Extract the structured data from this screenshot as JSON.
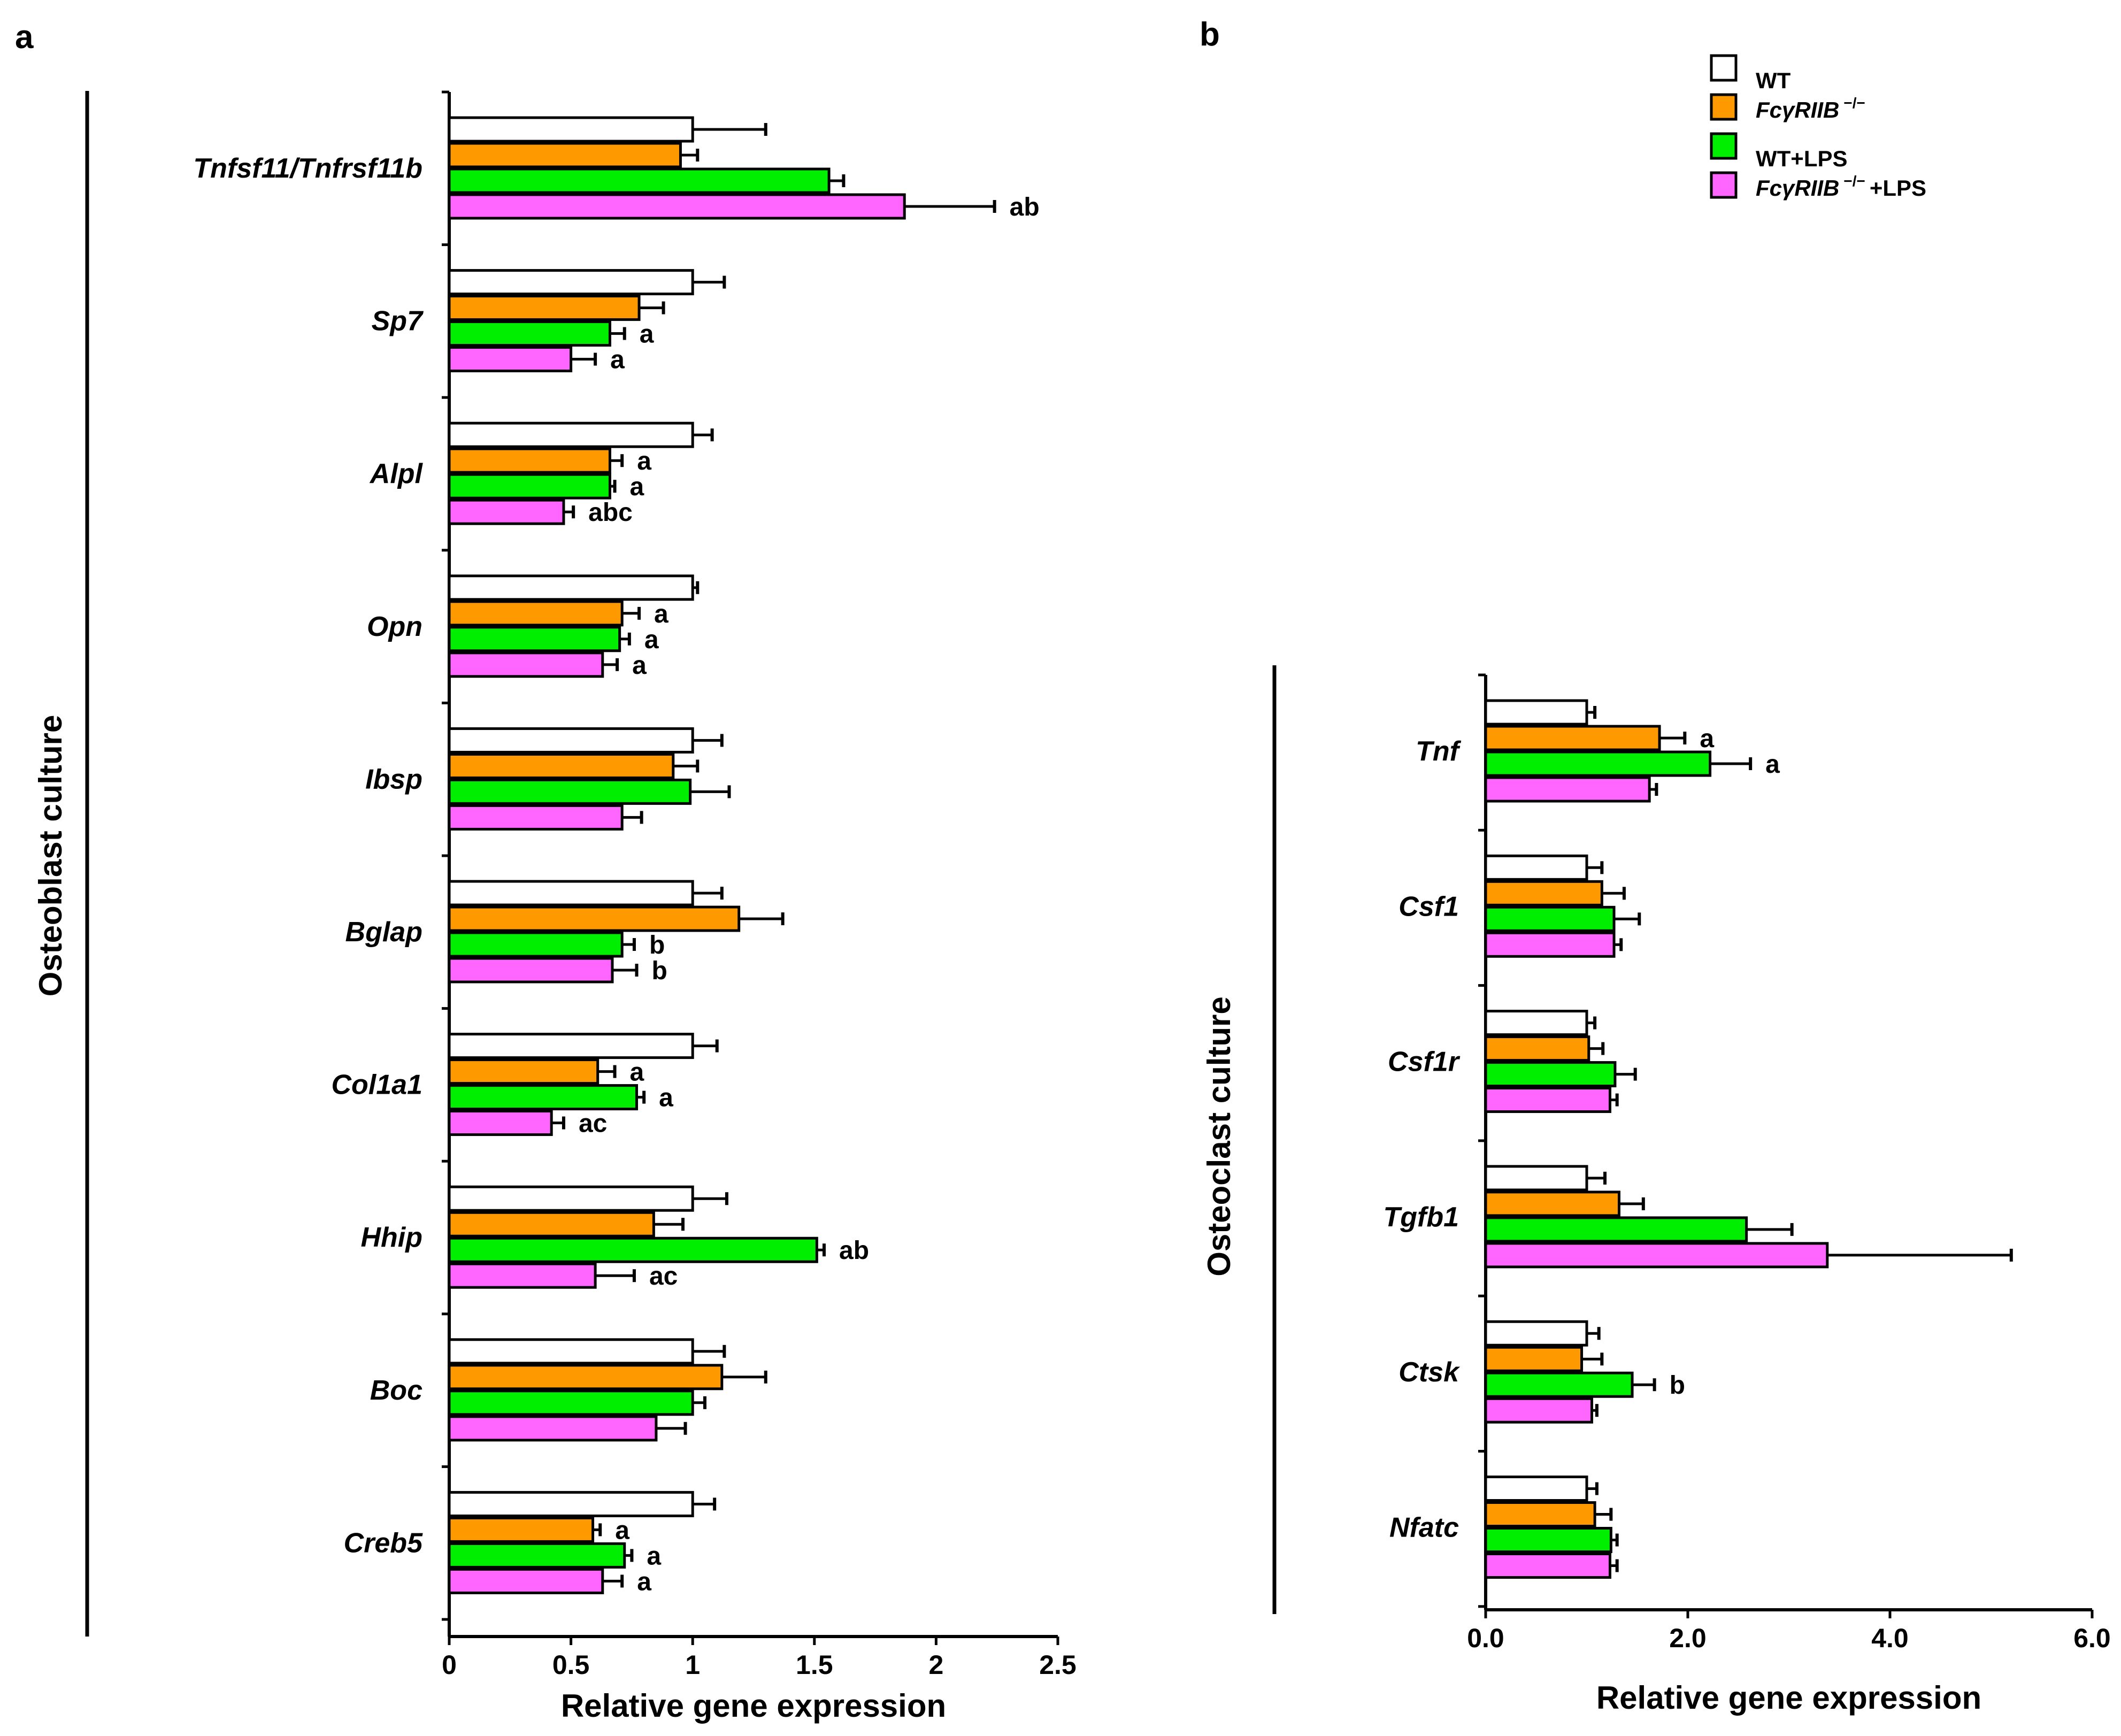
{
  "figure": {
    "panel_a_letter": "a",
    "panel_b_letter": "b"
  },
  "legend": {
    "items": [
      {
        "name": "WT",
        "color": "#ffffff",
        "italic": "",
        "sup": "",
        "suffix": "WT"
      },
      {
        "name": "FcγRIIB −/−",
        "color": "#ff9900",
        "italic": "FcγRIIB",
        "sup": "−/−",
        "suffix": ""
      },
      {
        "name": "WT+LPS",
        "color": "#00ee00",
        "italic": "",
        "sup": "",
        "suffix": "WT+LPS"
      },
      {
        "name": "FcγRIIB −/− +LPS",
        "color": "#ff66ff",
        "italic": "FcγRIIB",
        "sup": "−/−",
        "suffix": "+LPS"
      }
    ]
  },
  "chart_data": [
    {
      "panel": "a",
      "type": "bar",
      "orientation": "horizontal",
      "side_label": "Osteoblast culture",
      "xlabel": "Relative gene expression",
      "xlim": [
        0,
        2.5
      ],
      "xticks": [
        0,
        0.5,
        1,
        1.5,
        2,
        2.5
      ],
      "xtick_labels": [
        "0",
        "0.5",
        "1",
        "1.5",
        "2",
        "2.5"
      ],
      "categories": [
        "Tnfsf11/Tnfrsf11b",
        "Sp7",
        "Alpl",
        "Opn",
        "Ibsp",
        "Bglap",
        "Col1a1",
        "Hhip",
        "Boc",
        "Creb5"
      ],
      "series": [
        {
          "name": "WT",
          "color": "#ffffff",
          "values": [
            1.0,
            1.0,
            1.0,
            1.0,
            1.0,
            1.0,
            1.0,
            1.0,
            1.0,
            1.0
          ],
          "errors": [
            0.3,
            0.13,
            0.08,
            0.02,
            0.12,
            0.12,
            0.1,
            0.14,
            0.13,
            0.09
          ],
          "labels": [
            "",
            "",
            "",
            "",
            "",
            "",
            "",
            "",
            "",
            ""
          ]
        },
        {
          "name": "FcγRIIB −/−",
          "color": "#ff9900",
          "values": [
            0.95,
            0.78,
            0.66,
            0.71,
            0.92,
            1.19,
            0.61,
            0.84,
            1.12,
            0.59
          ],
          "errors": [
            0.07,
            0.1,
            0.05,
            0.07,
            0.1,
            0.18,
            0.07,
            0.12,
            0.18,
            0.03
          ],
          "labels": [
            "",
            "",
            "a",
            "a",
            "",
            "",
            "a",
            "",
            "",
            "a"
          ]
        },
        {
          "name": "WT+LPS",
          "color": "#00ee00",
          "values": [
            1.56,
            0.66,
            0.66,
            0.7,
            0.99,
            0.71,
            0.77,
            1.51,
            1.0,
            0.72
          ],
          "errors": [
            0.06,
            0.06,
            0.02,
            0.04,
            0.16,
            0.05,
            0.03,
            0.03,
            0.05,
            0.03
          ],
          "labels": [
            "",
            "a",
            "a",
            "a",
            "",
            "b",
            "a",
            "ab",
            "",
            "a"
          ]
        },
        {
          "name": "FcγRIIB −/− +LPS",
          "color": "#ff66ff",
          "values": [
            1.87,
            0.5,
            0.47,
            0.63,
            0.71,
            0.67,
            0.42,
            0.6,
            0.85,
            0.63
          ],
          "errors": [
            0.37,
            0.1,
            0.04,
            0.06,
            0.08,
            0.1,
            0.05,
            0.16,
            0.12,
            0.08
          ],
          "labels": [
            "ab",
            "a",
            "abc",
            "a",
            "",
            "b",
            "ac",
            "ac",
            "",
            "a"
          ]
        }
      ]
    },
    {
      "panel": "b",
      "type": "bar",
      "orientation": "horizontal",
      "side_label": "Osteoclast culture",
      "xlabel": "Relative gene expression",
      "xlim": [
        0,
        6.0
      ],
      "xticks": [
        0,
        2,
        4,
        6
      ],
      "xtick_labels": [
        "0.0",
        "2.0",
        "4.0",
        "6.0"
      ],
      "categories": [
        "Tnf",
        "Csf1",
        "Csf1r",
        "Tgfb1",
        "Ctsk",
        "Nfatc"
      ],
      "series": [
        {
          "name": "WT",
          "color": "#ffffff",
          "values": [
            1.0,
            1.0,
            1.0,
            1.0,
            1.0,
            1.0
          ],
          "errors": [
            0.08,
            0.15,
            0.08,
            0.18,
            0.12,
            0.1
          ],
          "labels": [
            "",
            "",
            "",
            "",
            "",
            ""
          ]
        },
        {
          "name": "FcγRIIB −/−",
          "color": "#ff9900",
          "values": [
            1.72,
            1.15,
            1.02,
            1.32,
            0.95,
            1.08
          ],
          "errors": [
            0.25,
            0.22,
            0.14,
            0.24,
            0.2,
            0.16
          ],
          "labels": [
            "a",
            "",
            "",
            "",
            "",
            ""
          ]
        },
        {
          "name": "WT+LPS",
          "color": "#00ee00",
          "values": [
            2.22,
            1.27,
            1.28,
            2.58,
            1.45,
            1.24
          ],
          "errors": [
            0.4,
            0.25,
            0.2,
            0.45,
            0.22,
            0.06
          ],
          "labels": [
            "a",
            "",
            "",
            "",
            "b",
            ""
          ]
        },
        {
          "name": "FcγRIIB −/− +LPS",
          "color": "#ff66ff",
          "values": [
            1.62,
            1.27,
            1.23,
            3.38,
            1.05,
            1.23
          ],
          "errors": [
            0.07,
            0.07,
            0.07,
            1.82,
            0.05,
            0.07
          ],
          "labels": [
            "",
            "",
            "",
            "",
            "",
            ""
          ]
        }
      ]
    }
  ]
}
